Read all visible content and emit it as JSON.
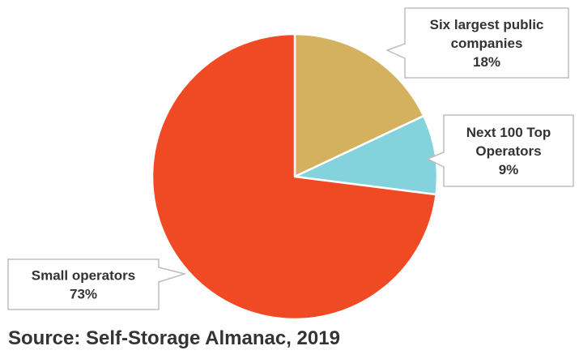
{
  "chart_data": {
    "type": "pie",
    "title": "",
    "slices": [
      {
        "label_lines": [
          "Six largest public",
          "companies"
        ],
        "value_label": "18%",
        "value": 18,
        "color": "#d4b15f"
      },
      {
        "label_lines": [
          "Next 100 Top",
          "Operators"
        ],
        "value_label": "9%",
        "value": 9,
        "color": "#84d2dc"
      },
      {
        "label_lines": [
          "Small operators"
        ],
        "value_label": "73%",
        "value": 73,
        "color": "#ef4a24"
      }
    ],
    "legend": "none"
  },
  "source": "Source: Self-Storage Almanac, 2019"
}
